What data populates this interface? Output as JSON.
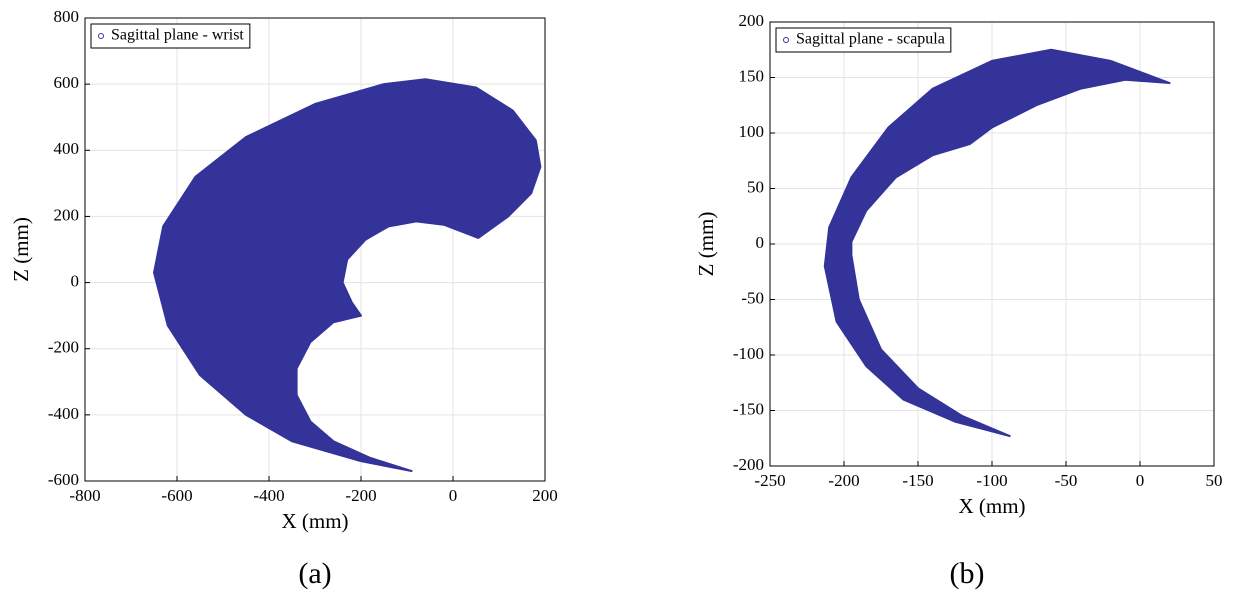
{
  "chart_data": [
    {
      "type": "scatter",
      "caption": "(a)",
      "xlabel": "X (mm)",
      "ylabel": "Z (mm)",
      "legend": "upper left",
      "grid": true,
      "xlim": [
        -800,
        200
      ],
      "ylim": [
        -600,
        800
      ],
      "xticks": [
        -800,
        -600,
        -400,
        -200,
        0,
        200
      ],
      "yticks": [
        -600,
        -400,
        -200,
        0,
        200,
        400,
        600,
        800
      ],
      "series": [
        {
          "name": "Sagittal plane - wrist",
          "color": "#333399",
          "x": [
            -90,
            -200,
            -350,
            -450,
            -550,
            -620,
            -650,
            -630,
            -560,
            -450,
            -300,
            -150,
            -60,
            50,
            130,
            180,
            190,
            170,
            120,
            55,
            -20,
            -80,
            -140,
            -190,
            -230,
            -240,
            -220,
            -200,
            -260,
            -310,
            -340,
            -340,
            -310,
            -260,
            -180
          ],
          "values": [
            -570,
            -540,
            -480,
            -400,
            -280,
            -130,
            30,
            170,
            320,
            440,
            540,
            600,
            615,
            590,
            520,
            430,
            350,
            270,
            200,
            135,
            175,
            185,
            170,
            130,
            70,
            0,
            -60,
            -100,
            -120,
            -180,
            -260,
            -340,
            -420,
            -480,
            -530
          ]
        }
      ]
    },
    {
      "type": "scatter",
      "caption": "(b)",
      "xlabel": "X (mm)",
      "ylabel": "Z (mm)",
      "legend": "upper left",
      "grid": true,
      "xlim": [
        -250,
        50
      ],
      "ylim": [
        -200,
        200
      ],
      "xticks": [
        -250,
        -200,
        -150,
        -100,
        -50,
        0,
        50
      ],
      "yticks": [
        -200,
        -150,
        -100,
        -50,
        0,
        50,
        100,
        150,
        200
      ],
      "series": [
        {
          "name": "Sagittal plane - scapula",
          "color": "#333399",
          "x": [
            20,
            -20,
            -60,
            -100,
            -140,
            -170,
            -195,
            -210,
            -213,
            -205,
            -185,
            -160,
            -125,
            -88,
            -120,
            -150,
            -175,
            -190,
            -195,
            -195,
            -185,
            -165,
            -140,
            -115,
            -100,
            -70,
            -40,
            -10
          ],
          "values": [
            145,
            165,
            175,
            165,
            140,
            105,
            60,
            15,
            -20,
            -70,
            -110,
            -140,
            -160,
            -173,
            -155,
            -130,
            -95,
            -50,
            -10,
            2,
            30,
            60,
            80,
            90,
            105,
            125,
            140,
            148
          ]
        }
      ]
    }
  ]
}
